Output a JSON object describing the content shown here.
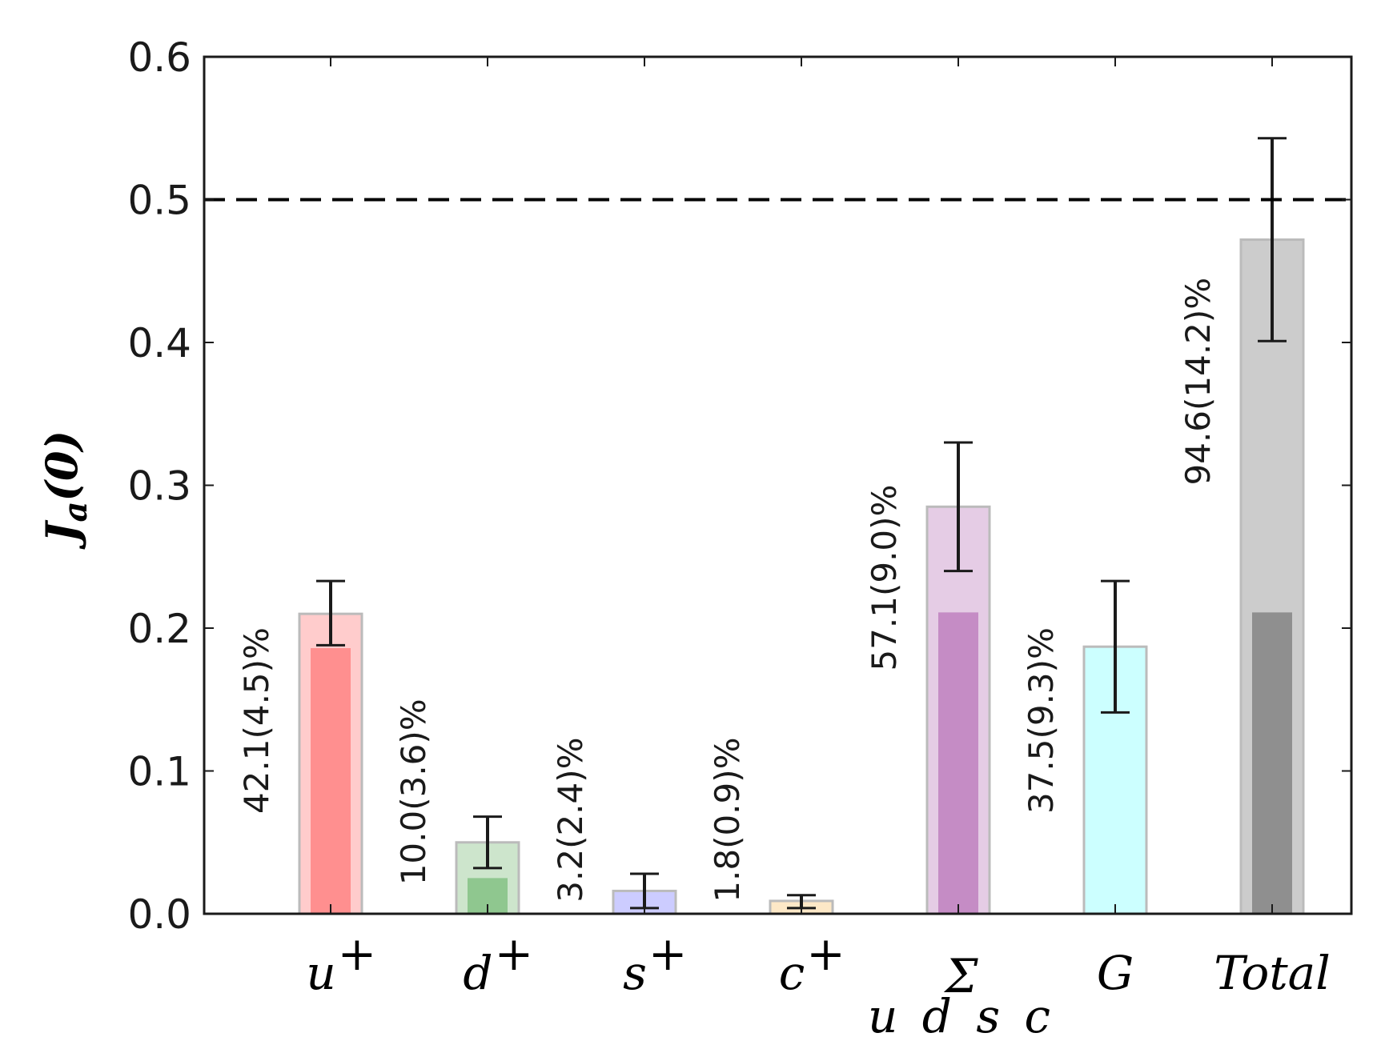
{
  "chart_data": {
    "type": "bar",
    "ylabel": "J_a(0)",
    "ylim": [
      0,
      0.6
    ],
    "yticks": [
      "0.0",
      "0.1",
      "0.2",
      "0.3",
      "0.4",
      "0.5",
      "0.6"
    ],
    "reference_line": {
      "value": 0.5,
      "style": "dashed"
    },
    "categories": [
      {
        "key": "u",
        "label": "u",
        "superscript": "+",
        "subscript": "",
        "value": 0.21,
        "inner_value": 0.186,
        "err_low": 0.188,
        "err_high": 0.233,
        "percent_label": "42.1(4.5)%",
        "outer_color": "#ffcccc",
        "inner_color": "#ff8f8f"
      },
      {
        "key": "d",
        "label": "d",
        "superscript": "+",
        "subscript": "",
        "value": 0.05,
        "inner_value": 0.025,
        "err_low": 0.032,
        "err_high": 0.068,
        "percent_label": "10.0(3.6)%",
        "outer_color": "#cde5cc",
        "inner_color": "#8fc78f"
      },
      {
        "key": "s",
        "label": "s",
        "superscript": "+",
        "subscript": "",
        "value": 0.016,
        "inner_value": 0.0,
        "err_low": 0.004,
        "err_high": 0.028,
        "percent_label": "3.2(2.4)%",
        "outer_color": "#ccccff",
        "inner_color": "#a3a3ff"
      },
      {
        "key": "c",
        "label": "c",
        "superscript": "+",
        "subscript": "",
        "value": 0.009,
        "inner_value": 0.0,
        "err_low": 0.004,
        "err_high": 0.013,
        "percent_label": "1.8(0.9)%",
        "outer_color": "#fde8c7",
        "inner_color": "#f5c98a"
      },
      {
        "key": "sum",
        "label": "Σ",
        "superscript": "",
        "subscript": "u d s c",
        "value": 0.285,
        "inner_value": 0.211,
        "err_low": 0.24,
        "err_high": 0.33,
        "percent_label": "57.1(9.0)%",
        "outer_color": "#e5cce5",
        "inner_color": "#c58cc5"
      },
      {
        "key": "G",
        "label": "G",
        "superscript": "",
        "subscript": "",
        "value": 0.187,
        "inner_value": 0.0,
        "err_low": 0.141,
        "err_high": 0.233,
        "percent_label": "37.5(9.3)%",
        "outer_color": "#ccffff",
        "inner_color": "#ccffff"
      },
      {
        "key": "total",
        "label": "Total",
        "superscript": "",
        "subscript": "",
        "value": 0.472,
        "inner_value": 0.211,
        "err_low": 0.401,
        "err_high": 0.543,
        "percent_label": "94.6(14.2)%",
        "outer_color": "#cccccc",
        "inner_color": "#8f8f8f"
      }
    ]
  }
}
